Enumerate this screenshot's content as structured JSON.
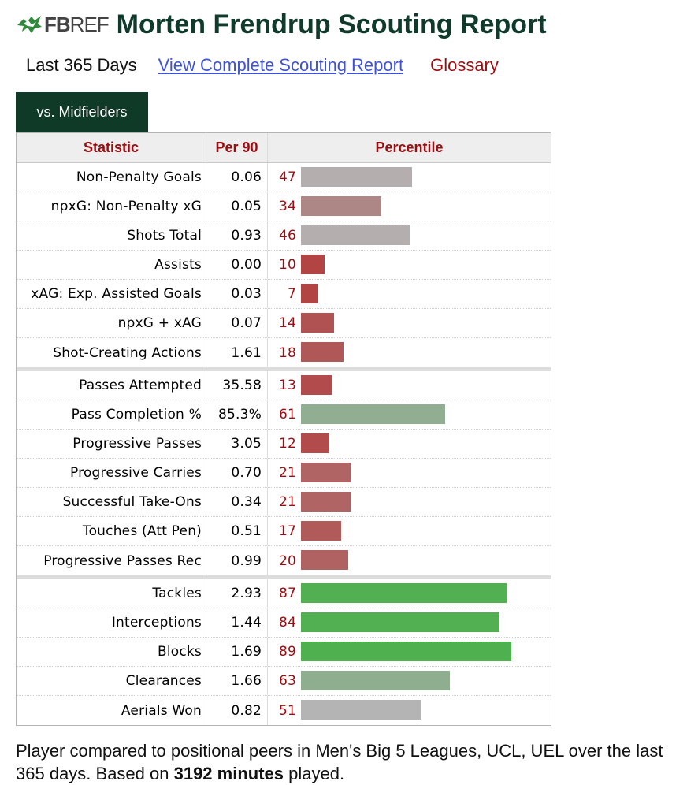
{
  "logo": {
    "fb": "FB",
    "ref": "REF"
  },
  "page_title": "Morten Frendrup Scouting Report",
  "subnav": {
    "period": "Last 365 Days",
    "full_report_link": "View Complete Scouting Report",
    "glossary_link": "Glossary"
  },
  "tab": {
    "label": "vs. Midfielders"
  },
  "table": {
    "headers": {
      "statistic": "Statistic",
      "per90": "Per 90",
      "percentile": "Percentile"
    },
    "bar_colors": {
      "gray": "#b0aaaa",
      "muted_red": "#b08686",
      "red": "#b04a4a",
      "medium_red": "#b06464",
      "muted_green": "#8fae8f",
      "green": "#52b052",
      "light_gray": "#b4b4b4"
    },
    "groups": [
      [
        {
          "statistic": "Non-Penalty Goals",
          "per90": "0.06",
          "percentile": 47,
          "color": "#b4aeae"
        },
        {
          "statistic": "npxG: Non-Penalty xG",
          "per90": "0.05",
          "percentile": 34,
          "color": "#ad8686"
        },
        {
          "statistic": "Shots Total",
          "per90": "0.93",
          "percentile": 46,
          "color": "#b4aeae"
        },
        {
          "statistic": "Assists",
          "per90": "0.00",
          "percentile": 10,
          "color": "#b24444"
        },
        {
          "statistic": "xAG: Exp. Assisted Goals",
          "per90": "0.03",
          "percentile": 7,
          "color": "#b24444"
        },
        {
          "statistic": "npxG + xAG",
          "per90": "0.07",
          "percentile": 14,
          "color": "#b05252"
        },
        {
          "statistic": "Shot-Creating Actions",
          "per90": "1.61",
          "percentile": 18,
          "color": "#b05858"
        }
      ],
      [
        {
          "statistic": "Passes Attempted",
          "per90": "35.58",
          "percentile": 13,
          "color": "#b24c4c"
        },
        {
          "statistic": "Pass Completion %",
          "per90": "85.3%",
          "percentile": 61,
          "color": "#92ae92"
        },
        {
          "statistic": "Progressive Passes",
          "per90": "3.05",
          "percentile": 12,
          "color": "#b24c4c"
        },
        {
          "statistic": "Progressive Carries",
          "per90": "0.70",
          "percentile": 21,
          "color": "#b06464"
        },
        {
          "statistic": "Successful Take-Ons",
          "per90": "0.34",
          "percentile": 21,
          "color": "#b06464"
        },
        {
          "statistic": "Touches (Att Pen)",
          "per90": "0.51",
          "percentile": 17,
          "color": "#b05a5a"
        },
        {
          "statistic": "Progressive Passes Rec",
          "per90": "0.99",
          "percentile": 20,
          "color": "#b06262"
        }
      ],
      [
        {
          "statistic": "Tackles",
          "per90": "2.93",
          "percentile": 87,
          "color": "#52b052"
        },
        {
          "statistic": "Interceptions",
          "per90": "1.44",
          "percentile": 84,
          "color": "#52b052"
        },
        {
          "statistic": "Blocks",
          "per90": "1.69",
          "percentile": 89,
          "color": "#4eb04e"
        },
        {
          "statistic": "Clearances",
          "per90": "1.66",
          "percentile": 63,
          "color": "#8fae8f"
        },
        {
          "statistic": "Aerials Won",
          "per90": "0.82",
          "percentile": 51,
          "color": "#b4b4b4"
        }
      ]
    ]
  },
  "footer": {
    "text_before": "Player compared to positional peers in Men's Big 5 Leagues, UCL, UEL over the last 365 days. Based on ",
    "minutes": "3192 minutes",
    "text_after": " played."
  }
}
